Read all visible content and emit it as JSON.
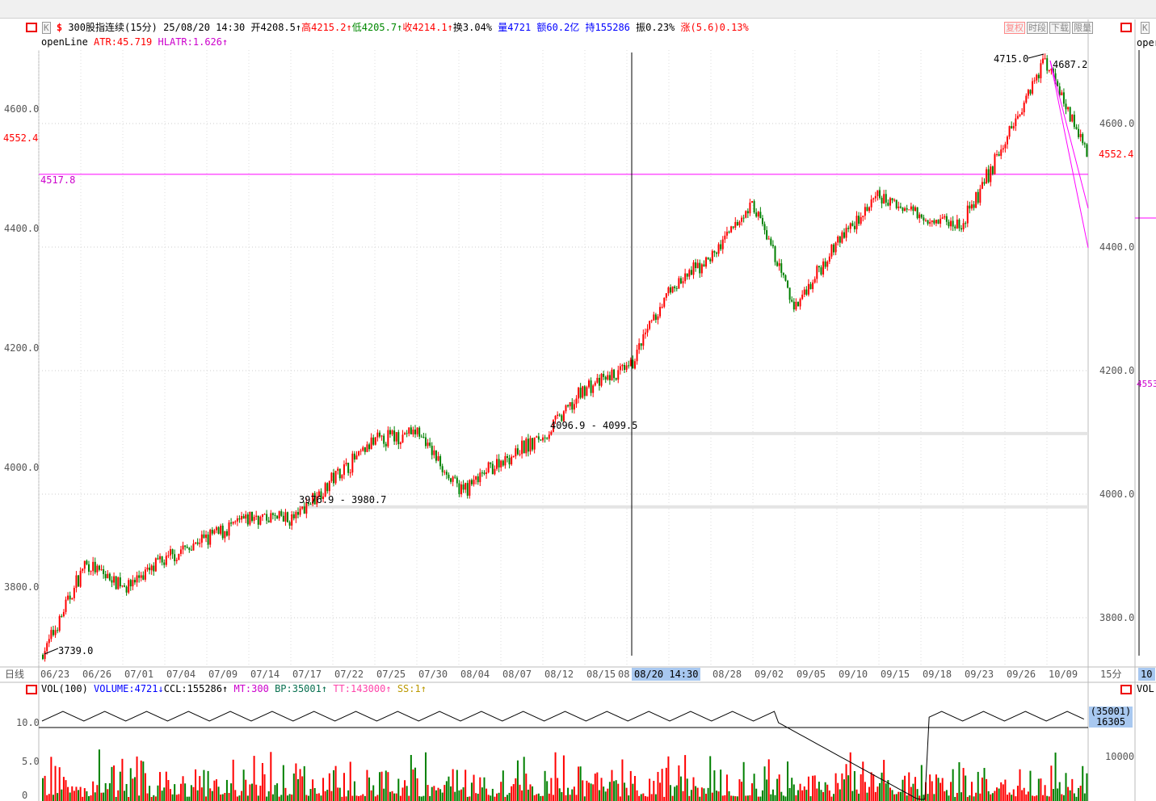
{
  "header": {
    "kline_btn": "K",
    "symbol": "300股指连续(15分)",
    "datetime": "25/08/20 14:30",
    "open": "开4208.5",
    "high": "高4215.2",
    "low": "低4205.7",
    "close": "收4214.1",
    "turnover": "换3.04%",
    "volume": "量4721",
    "amount": "额60.2亿",
    "hold": "持155286",
    "amplitude": "振0.23%",
    "change": "涨(5.6)0.13%",
    "arrow": "↑"
  },
  "indicator": {
    "name": "openLine",
    "atr": "ATR:45.719",
    "hlatr": "HLATR:1.626",
    "arrow": "↑"
  },
  "toolbar": [
    "复权",
    "时段",
    "下载",
    "限量"
  ],
  "right_panel": {
    "kline_btn": "K",
    "indicator": "oper",
    "vol": "VOL",
    "period_box": "10",
    "price_label": "4553"
  },
  "chart_data": {
    "type": "candlestick",
    "period": "15分",
    "y_axis_right": [
      4600,
      4400,
      4200,
      4000,
      3800
    ],
    "y_axis_left": [
      "4600.0",
      "4400.0",
      "4200.0",
      "4000.0",
      "3800.0"
    ],
    "right_tick_labels": [
      "4600.0",
      "4400.0",
      "4200.0",
      "4000.0",
      "3800.0"
    ],
    "current_price": "4552.4",
    "open_line": {
      "value": 4517.8,
      "label": "4517.8"
    },
    "annotations": [
      {
        "label": "3739.0",
        "value": 3739.0
      },
      {
        "label": "4715.0",
        "value": 4715.0
      },
      {
        "label": "4687.2",
        "value": 4687.2
      },
      {
        "label": "3976.9 - 3980.7",
        "low": 3976.9,
        "high": 3980.7
      },
      {
        "label": "4096.9 - 4099.5",
        "low": 4096.9,
        "high": 4099.5
      }
    ],
    "x_labels": [
      "06/23",
      "06/26",
      "07/01",
      "07/04",
      "07/09",
      "07/14",
      "07/17",
      "07/22",
      "07/25",
      "07/30",
      "08/04",
      "08/07",
      "08/12",
      "08/15",
      "08",
      "",
      "08/28",
      "09/02",
      "09/05",
      "09/10",
      "09/15",
      "09/18",
      "09/23",
      "09/26",
      "10/09"
    ],
    "x_axis_left_label": "日线",
    "cursor_label": "08/20 14:30",
    "approx_close_path": [
      [
        "06/23",
        3740
      ],
      [
        "06/26",
        3885
      ],
      [
        "07/01",
        3852
      ],
      [
        "07/04",
        3898
      ],
      [
        "07/09",
        3931
      ],
      [
        "07/14",
        3963
      ],
      [
        "07/17",
        3960
      ],
      [
        "07/22",
        4029
      ],
      [
        "07/25",
        4088
      ],
      [
        "07/30",
        4100
      ],
      [
        "08/04",
        4003
      ],
      [
        "08/07",
        4055
      ],
      [
        "08/12",
        4094
      ],
      [
        "08/15",
        4172
      ],
      [
        "08/18",
        4200
      ],
      [
        "08/21",
        4330
      ],
      [
        "08/28",
        4382
      ],
      [
        "09/02",
        4473
      ],
      [
        "09/05",
        4303
      ],
      [
        "09/10",
        4408
      ],
      [
        "09/15",
        4480
      ],
      [
        "09/18",
        4454
      ],
      [
        "09/23",
        4434
      ],
      [
        "09/26",
        4565
      ],
      [
        "10/09",
        4708
      ],
      [
        "10/14",
        4552
      ]
    ],
    "colors": {
      "up": "#ff0000",
      "down": "#008000",
      "open_line": "#ff00ff",
      "cursor": "#000000"
    },
    "volume": {
      "title": "VOL(100)",
      "volume": "VOLUME:4721",
      "volume_arrow": "↓",
      "ccl": "CCL:155286",
      "ccl_arrow": "↑",
      "mt": "MT:300",
      "bp": "BP:35001",
      "bp_arrow": "↑",
      "tt": "TT:143000",
      "tt_arrow": "↑",
      "ss": "SS:1",
      "ss_arrow": "↑",
      "left_ticks": [
        "10.0",
        "5.0",
        "0"
      ],
      "right_tick": "10000",
      "readout_1": "(35001)",
      "readout_2": "16305"
    }
  }
}
